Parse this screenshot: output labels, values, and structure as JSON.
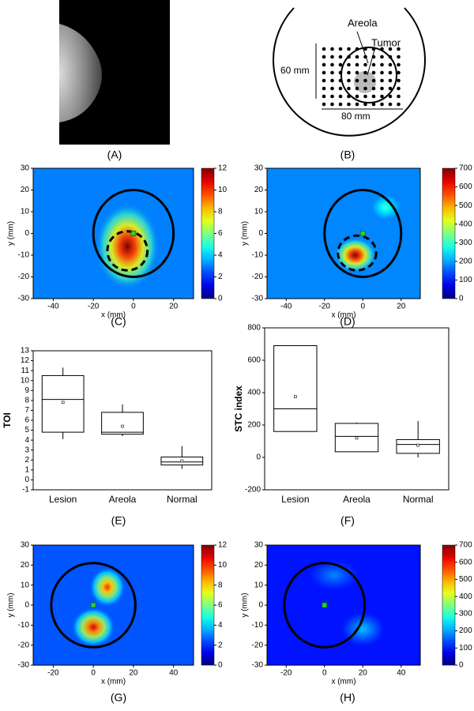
{
  "panel_a": {
    "label": "(A)"
  },
  "panel_b": {
    "label": "(B)",
    "areola": "Areola",
    "tumor": "Tumor",
    "height": "60 mm",
    "width": "80 mm"
  },
  "chart_data": [
    {
      "type": "heatmap",
      "panel": "(C)",
      "xlabel": "x (mm)",
      "ylabel": "y (mm)",
      "xlim": [
        -50,
        30
      ],
      "ylim": [
        -30,
        30
      ],
      "xticks": [
        -40,
        -20,
        0,
        20
      ],
      "yticks": [
        -30,
        -20,
        -10,
        0,
        10,
        20,
        30
      ],
      "clim": [
        0,
        12
      ],
      "cticks": [
        0,
        2,
        4,
        6,
        8,
        10,
        12
      ],
      "background": 3,
      "hotspots": [
        {
          "x": -3,
          "y": -6,
          "value": 12,
          "rx": 16,
          "ry": 20
        }
      ],
      "circle": {
        "x": 0,
        "y": 0,
        "r": 20
      },
      "ellipse": {
        "x": -3,
        "y": -8,
        "rx": 10,
        "ry": 9
      },
      "marker": [
        0,
        0
      ]
    },
    {
      "type": "heatmap",
      "panel": "(D)",
      "xlabel": "x (mm)",
      "ylabel": "y (mm)",
      "xlim": [
        -50,
        30
      ],
      "ylim": [
        -30,
        30
      ],
      "xticks": [
        -40,
        -20,
        0,
        20
      ],
      "yticks": [
        -30,
        -20,
        -10,
        0,
        10,
        20,
        30
      ],
      "clim": [
        0,
        700
      ],
      "cticks": [
        0,
        100,
        200,
        300,
        400,
        500,
        600,
        700
      ],
      "background": 180,
      "hotspots": [
        {
          "x": -4,
          "y": -10,
          "value": 700,
          "rx": 11,
          "ry": 8
        },
        {
          "x": 12,
          "y": 12,
          "value": 300,
          "rx": 8,
          "ry": 6
        }
      ],
      "circle": {
        "x": 0,
        "y": 0,
        "r": 20
      },
      "ellipse": {
        "x": -3,
        "y": -9,
        "rx": 10,
        "ry": 8
      },
      "marker": [
        0,
        0
      ]
    },
    {
      "type": "box",
      "panel": "(E)",
      "ylabel": "TOI",
      "categories": [
        "Lesion",
        "Areola",
        "Normal"
      ],
      "ylim": [
        -1,
        13
      ],
      "yticks": [
        -1,
        0,
        1,
        2,
        3,
        4,
        5,
        6,
        7,
        8,
        9,
        10,
        11,
        12,
        13
      ],
      "boxes": [
        {
          "min": 4.1,
          "q1": 4.8,
          "median": 8.1,
          "q3": 10.5,
          "max": 11.3,
          "mean": 7.8
        },
        {
          "min": 4.4,
          "q1": 4.6,
          "median": 4.8,
          "q3": 6.8,
          "max": 7.6,
          "mean": 5.4
        },
        {
          "min": 1.1,
          "q1": 1.5,
          "median": 1.8,
          "q3": 2.3,
          "max": 3.4,
          "mean": 1.9
        }
      ]
    },
    {
      "type": "box",
      "panel": "(F)",
      "ylabel": "STC index",
      "categories": [
        "Lesion",
        "Areola",
        "Normal"
      ],
      "ylim": [
        -200,
        800
      ],
      "yticks": [
        -200,
        0,
        200,
        400,
        600,
        800
      ],
      "boxes": [
        {
          "min": 160,
          "q1": 160,
          "median": 300,
          "q3": 690,
          "max": 690,
          "mean": 375
        },
        {
          "min": 35,
          "q1": 35,
          "median": 130,
          "q3": 210,
          "max": 215,
          "mean": 120
        },
        {
          "min": 0,
          "q1": 25,
          "median": 80,
          "q3": 110,
          "max": 225,
          "mean": 75
        }
      ]
    },
    {
      "type": "heatmap",
      "panel": "(G)",
      "xlabel": "x (mm)",
      "ylabel": "y (mm)",
      "xlim": [
        -30,
        50
      ],
      "ylim": [
        -30,
        30
      ],
      "xticks": [
        -20,
        0,
        20,
        40
      ],
      "yticks": [
        -30,
        -20,
        -10,
        0,
        10,
        20,
        30
      ],
      "clim": [
        0,
        12
      ],
      "cticks": [
        0,
        2,
        4,
        6,
        8,
        10,
        12
      ],
      "background": 2.5,
      "hotspots": [
        {
          "x": 7,
          "y": 9,
          "value": 10,
          "rx": 9,
          "ry": 10
        },
        {
          "x": 0,
          "y": -11,
          "value": 11,
          "rx": 11,
          "ry": 10
        }
      ],
      "circle": {
        "x": 0,
        "y": 0,
        "r": 21
      },
      "marker": [
        0,
        0
      ]
    },
    {
      "type": "heatmap",
      "panel": "(H)",
      "xlabel": "x (mm)",
      "ylabel": "y (mm)",
      "xlim": [
        -30,
        50
      ],
      "ylim": [
        -30,
        30
      ],
      "xticks": [
        -20,
        0,
        20,
        40
      ],
      "yticks": [
        -30,
        -20,
        -10,
        0,
        10,
        20,
        30
      ],
      "clim": [
        0,
        700
      ],
      "cticks": [
        0,
        100,
        200,
        300,
        400,
        500,
        600,
        700
      ],
      "background": 100,
      "hotspots": [
        {
          "x": 20,
          "y": -12,
          "value": 220,
          "rx": 12,
          "ry": 9
        },
        {
          "x": 5,
          "y": 15,
          "value": 180,
          "rx": 14,
          "ry": 8
        }
      ],
      "circle": {
        "x": 0,
        "y": 0,
        "r": 21
      },
      "marker": [
        0,
        0
      ]
    }
  ]
}
